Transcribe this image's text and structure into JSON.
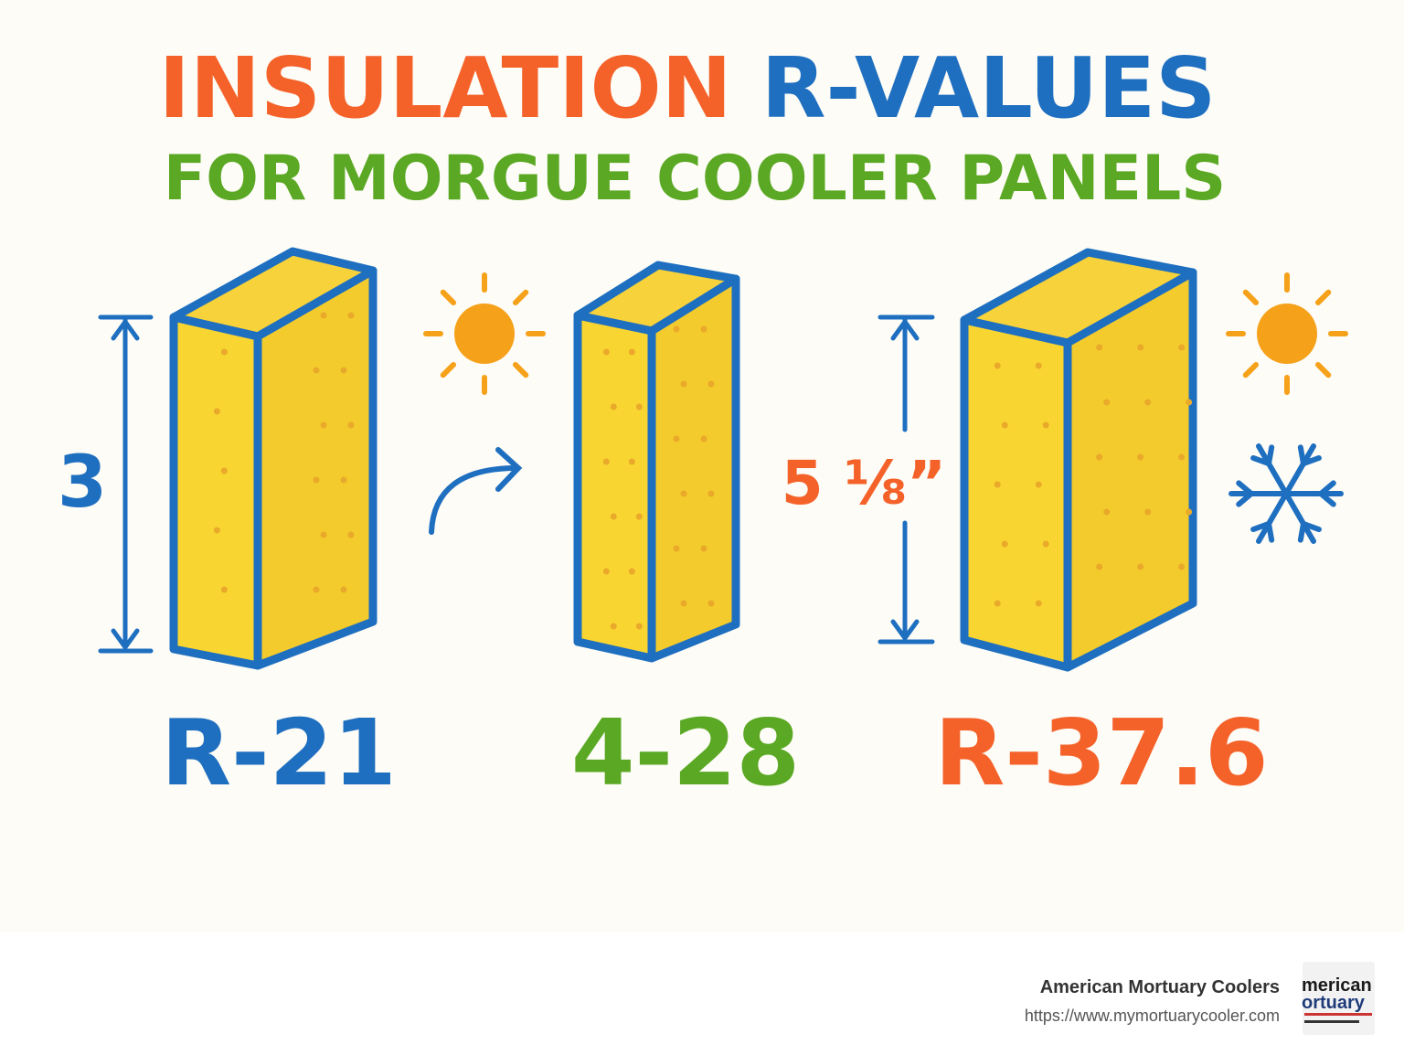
{
  "title": {
    "part1": "INSULATION",
    "part2": "R-VALUES",
    "subtitle": "FOR MORGUE COOLER PANELS"
  },
  "dimensions": [
    "3",
    "5 ⅛”"
  ],
  "panels": [
    {
      "label": "R-21"
    },
    {
      "label": "4-28"
    },
    {
      "label": "R-37.6"
    }
  ],
  "footer": {
    "company": "American Mortuary Coolers",
    "url": "https://www.mymortuarycooler.com",
    "logo": [
      "merican",
      "ortuary"
    ]
  }
}
